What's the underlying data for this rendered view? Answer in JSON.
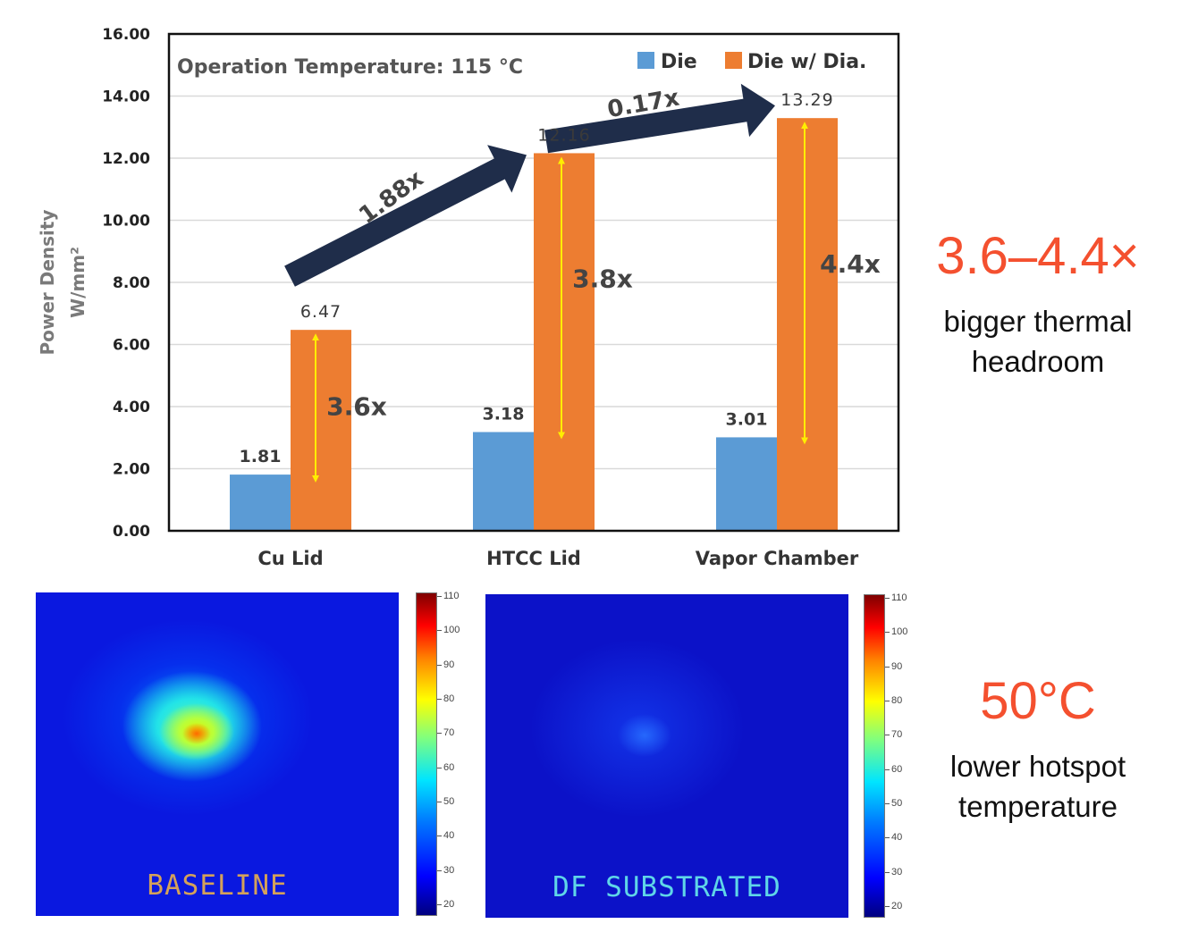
{
  "chart_data": {
    "type": "bar",
    "title": "Operation Temperature: 115 °C",
    "ylabel_line1": "Power Density",
    "ylabel_line2": "W/mm²",
    "ylim": [
      0,
      16
    ],
    "yticks": [
      "0.00",
      "2.00",
      "4.00",
      "6.00",
      "8.00",
      "10.00",
      "12.00",
      "14.00",
      "16.00"
    ],
    "grid": true,
    "legend_position": "top-right",
    "categories": [
      "Cu Lid",
      "HTCC Lid",
      "Vapor Chamber"
    ],
    "series": [
      {
        "name": "Die",
        "color": "#5b9bd5",
        "values": [
          1.81,
          3.18,
          3.01
        ],
        "labels": [
          "1.81",
          "3.18",
          "3.01"
        ]
      },
      {
        "name": "Die w/ Dia.",
        "color": "#ed7d31",
        "values": [
          6.47,
          12.16,
          13.29
        ],
        "labels": [
          "6.47",
          "12.16",
          "13.29"
        ]
      }
    ],
    "ratio_annotations": [
      "3.6x",
      "3.8x",
      "4.4x"
    ],
    "growth_annotations": [
      "1.88x",
      "0.17x"
    ],
    "annotation_colors": {
      "double_arrow": "#ffee00",
      "growth_arrow": "#1f2d4a"
    }
  },
  "callouts": [
    {
      "big": "3.6–4.4×",
      "line1": "bigger thermal",
      "line2": "headroom"
    },
    {
      "big": "50°C",
      "line1": "lower hotspot",
      "line2": "temperature"
    }
  ],
  "heatmaps": [
    {
      "caption": "BASELINE",
      "caption_color": "#d4a15a"
    },
    {
      "caption": "DF SUBSTRATED",
      "caption_color": "#5fd6e8"
    }
  ],
  "colorbar_ticks": [
    "110",
    "100",
    "90",
    "80",
    "70",
    "60",
    "50",
    "40",
    "30",
    "20"
  ]
}
